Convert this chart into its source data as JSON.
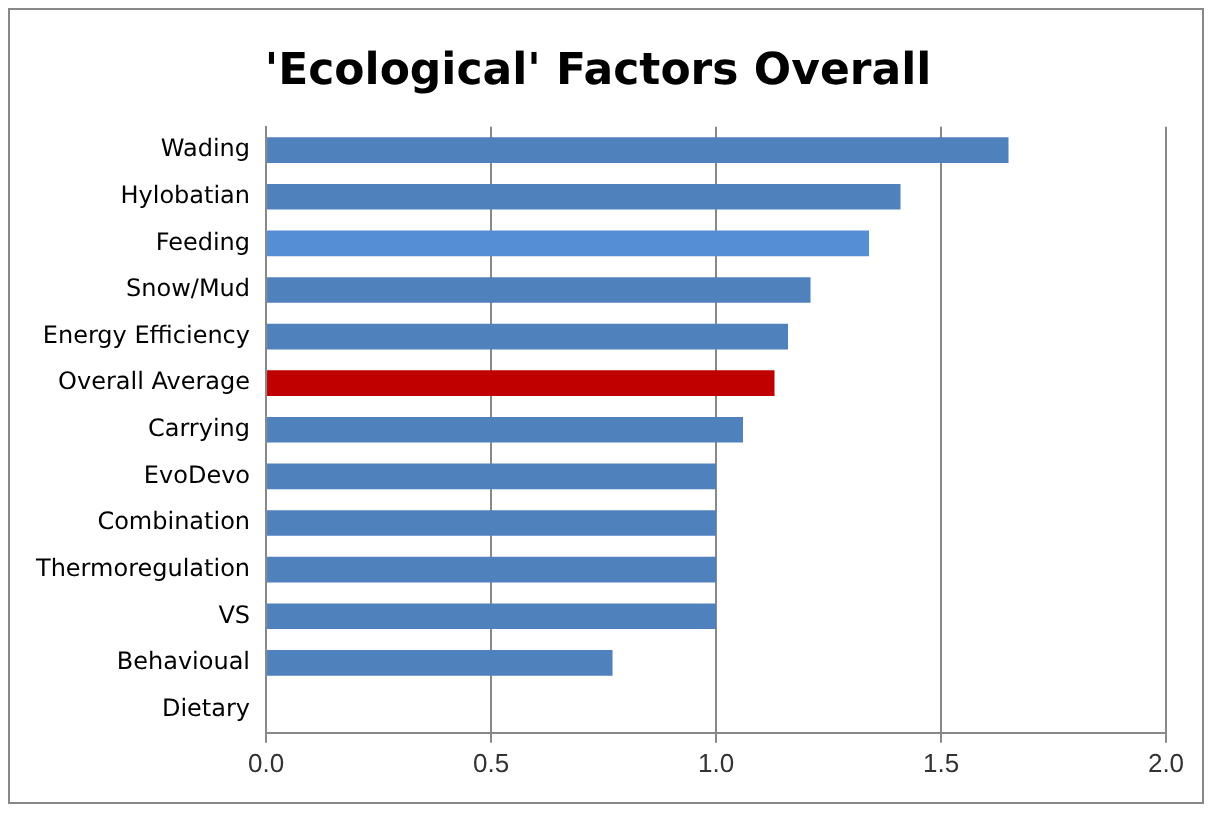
{
  "chart_data": {
    "type": "bar",
    "orientation": "horizontal",
    "title": "'Ecological' Factors Overall",
    "categories": [
      "Wading",
      "Hylobatian",
      "Feeding",
      "Snow/Mud",
      "Energy Efficiency",
      "Overall Average",
      "Carrying",
      "EvoDevo",
      "Combination",
      "Thermoregulation",
      "VS",
      "Behavioual",
      "Dietary"
    ],
    "values": [
      1.65,
      1.41,
      1.34,
      1.21,
      1.16,
      1.13,
      1.06,
      1.0,
      1.0,
      1.0,
      1.0,
      0.77,
      0
    ],
    "colors": [
      "#4f81bd",
      "#4f81bd",
      "#558ed5",
      "#4f81bd",
      "#4f81bd",
      "#c00000",
      "#4f81bd",
      "#4f81bd",
      "#4f81bd",
      "#4f81bd",
      "#4f81bd",
      "#4f81bd",
      "#4f81bd"
    ],
    "xlim": [
      0,
      2
    ],
    "xticks": [
      {
        "value": 0,
        "label": "0.0"
      },
      {
        "value": 0.5,
        "label": "0.5"
      },
      {
        "value": 1,
        "label": "1.0"
      },
      {
        "value": 1.5,
        "label": "1.5"
      },
      {
        "value": 2,
        "label": "2.0"
      }
    ],
    "grid": "x",
    "legend": false
  }
}
